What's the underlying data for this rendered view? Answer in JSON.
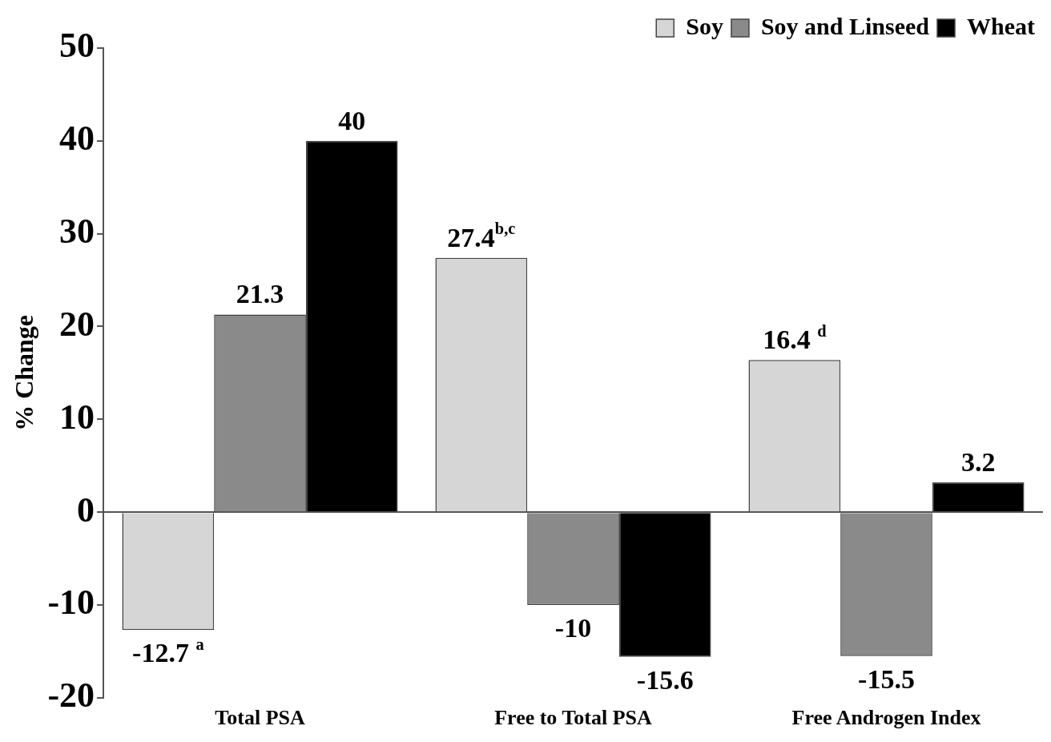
{
  "chart_data": {
    "type": "bar",
    "ylabel": "% Change",
    "categories": [
      "Total PSA",
      "Free to Total PSA",
      "Free Androgen Index"
    ],
    "series": [
      {
        "name": "Soy",
        "color": "#d6d6d6",
        "values": [
          -12.7,
          27.4,
          16.4
        ],
        "value_labels": [
          "-12.7 $^{a}$",
          "27.4$^{b,c}$",
          "16.4 $^{d}$"
        ]
      },
      {
        "name": "Soy and Linseed",
        "color": "#8a8a8a",
        "values": [
          21.3,
          -10,
          -15.5
        ],
        "value_labels": [
          "21.3",
          "-10",
          "-15.5"
        ]
      },
      {
        "name": "Wheat",
        "color": "#000000",
        "values": [
          40,
          -15.6,
          3.2
        ],
        "value_labels": [
          "40",
          "-15.6",
          "3.2"
        ]
      }
    ],
    "ylim": [
      -20,
      50
    ],
    "yticks": [
      -20,
      -10,
      0,
      10,
      20,
      30,
      40,
      50
    ],
    "legend": "top right"
  }
}
